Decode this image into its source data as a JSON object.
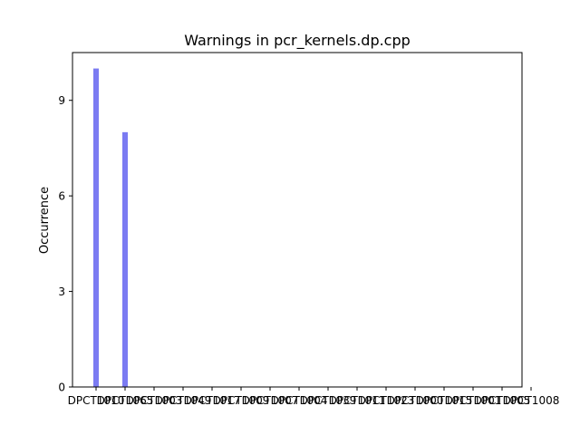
{
  "chart_data": {
    "type": "bar",
    "title": "Warnings in pcr_kernels.dp.cpp",
    "xlabel": "",
    "ylabel": "Occurrence",
    "categories": [
      "DPCT1010",
      "DPCT1065",
      "DPCT1003",
      "DPCT1049",
      "DPCT1017",
      "DPCT1009",
      "DPCT1007",
      "DPCT1004",
      "DPCT1039",
      "DPCT1011",
      "DPCT1023",
      "DPCT1000",
      "DPCT1015",
      "DPCT1001",
      "DPCT1005",
      "DPCT1008"
    ],
    "values": [
      10,
      8,
      0,
      0,
      0,
      0,
      0,
      0,
      0,
      0,
      0,
      0,
      0,
      0,
      0,
      0
    ],
    "ylim": [
      0,
      10.5
    ],
    "yticks": [
      0,
      3,
      6,
      9
    ],
    "grid": false,
    "bar_color": "#7b7bf2"
  }
}
